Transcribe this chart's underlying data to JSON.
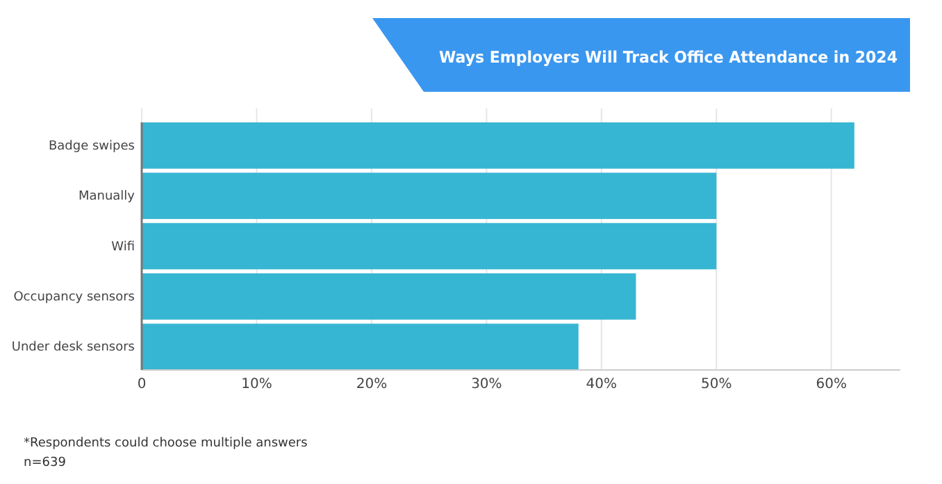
{
  "chart_data": {
    "type": "bar",
    "orientation": "horizontal",
    "title": "Ways Employers Will Track Office Attendance in 2024",
    "categories": [
      "Badge swipes",
      "Manually",
      "Wifi",
      "Occupancy sensors",
      "Under desk sensors"
    ],
    "values": [
      62,
      50,
      50,
      43,
      38
    ],
    "color": "#37b6d3",
    "xlim": [
      0,
      66
    ],
    "xticks": [
      0,
      {
        "value": 10,
        "label": "10%"
      },
      {
        "value": 20,
        "label": "20%"
      },
      {
        "value": 30,
        "label": "30%"
      },
      {
        "value": 40,
        "label": "40%"
      },
      {
        "value": 50,
        "label": "50%"
      },
      {
        "value": 60,
        "label": "60%"
      }
    ],
    "grid": "x",
    "annotations": [
      "*Respondents could choose multiple answers",
      "n=639"
    ]
  }
}
